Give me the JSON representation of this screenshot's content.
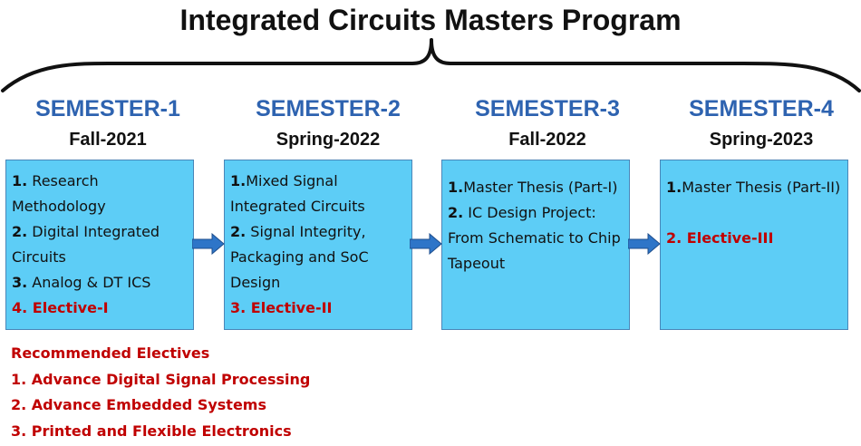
{
  "title": "Integrated Circuits Masters Program",
  "colors": {
    "heading": "#2E63B0",
    "box": "#5DCDF6",
    "arrow": "#2E75C8",
    "elective": "#C00000"
  },
  "semesters": [
    {
      "name": "SEMESTER-1",
      "term": "Fall-2021",
      "courses": [
        {
          "num": "1.",
          "text": " Research Methodology",
          "elective": false
        },
        {
          "num": "2.",
          "text": " Digital Integrated Circuits",
          "elective": false
        },
        {
          "num": "3.",
          "text": " Analog & DT ICS",
          "elective": false
        },
        {
          "num": "4.",
          "text": " Elective-I",
          "elective": true
        }
      ]
    },
    {
      "name": "SEMESTER-2",
      "term": "Spring-2022",
      "courses": [
        {
          "num": "1.",
          "text": "Mixed Signal Integrated Circuits",
          "elective": false
        },
        {
          "num": "2.",
          "text": " Signal Integrity, Packaging and SoC Design",
          "elective": false
        },
        {
          "num": "3.",
          "text": " Elective-II",
          "elective": true
        }
      ]
    },
    {
      "name": "SEMESTER-3",
      "term": "Fall-2022",
      "courses": [
        {
          "num": "1.",
          "text": "Master Thesis (Part-I)",
          "elective": false
        },
        {
          "num": "2.",
          "text": " IC Design Project: From Schematic to Chip Tapeout",
          "elective": false
        }
      ]
    },
    {
      "name": "SEMESTER-4",
      "term": "Spring-2023",
      "courses": [
        {
          "num": "1.",
          "text": "Master Thesis (Part-II)",
          "elective": false
        },
        {
          "num": "",
          "text": "",
          "elective": false
        },
        {
          "num": "2.",
          "text": " Elective-III",
          "elective": true
        }
      ]
    }
  ],
  "recommended": {
    "heading": "Recommended Electives",
    "items": [
      "1. Advance Digital Signal Processing",
      "2. Advance Embedded Systems",
      "3. Printed and Flexible Electronics"
    ]
  }
}
